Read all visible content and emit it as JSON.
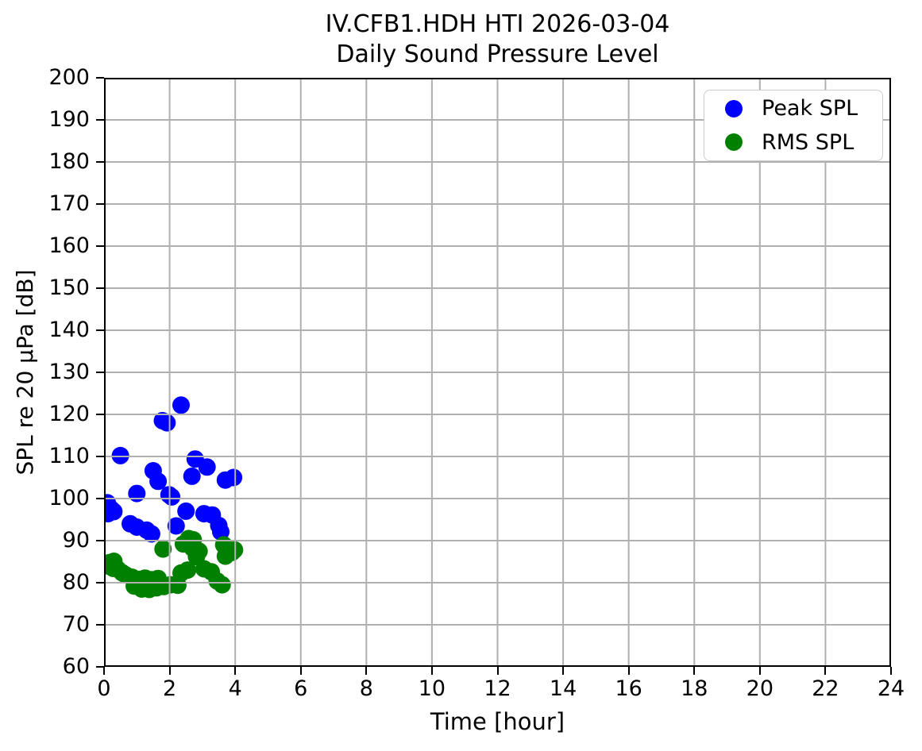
{
  "figure": {
    "background": "#ffffff",
    "text_color": "#000000"
  },
  "chart_data": {
    "type": "scatter",
    "title": "IV.CFB1.HDH HTI 2026-03-04",
    "subtitle": "Daily Sound Pressure Level",
    "xlabel": "Time [hour]",
    "ylabel": "SPL re 20 µPa [dB]",
    "xlim": [
      0,
      24
    ],
    "ylim": [
      60,
      200
    ],
    "xticks": [
      0,
      2,
      4,
      6,
      8,
      10,
      12,
      14,
      16,
      18,
      20,
      22,
      24
    ],
    "yticks": [
      60,
      70,
      80,
      90,
      100,
      110,
      120,
      130,
      140,
      150,
      160,
      170,
      180,
      190,
      200
    ],
    "grid": true,
    "grid_color": "#b0b0b0",
    "grid_above_points": true,
    "spine_color": "#000000",
    "legend_position": "upper right",
    "legend_border_color": "#cccccc",
    "series": [
      {
        "name": "Peak SPL",
        "color": "#0000ff",
        "marker": "o",
        "points": [
          [
            0.1,
            99.0
          ],
          [
            0.22,
            97.5
          ],
          [
            0.12,
            96.4
          ],
          [
            0.3,
            96.9
          ],
          [
            0.5,
            110.2
          ],
          [
            0.8,
            94.0
          ],
          [
            1.0,
            93.2
          ],
          [
            1.0,
            101.2
          ],
          [
            1.3,
            92.5
          ],
          [
            1.45,
            91.6
          ],
          [
            1.5,
            106.6
          ],
          [
            1.65,
            104.1
          ],
          [
            1.78,
            118.5
          ],
          [
            1.92,
            118.0
          ],
          [
            1.98,
            100.9
          ],
          [
            2.06,
            100.4
          ],
          [
            2.2,
            93.5
          ],
          [
            2.35,
            122.2
          ],
          [
            2.5,
            97.0
          ],
          [
            2.68,
            105.3
          ],
          [
            2.78,
            109.4
          ],
          [
            3.05,
            96.4
          ],
          [
            3.14,
            107.5
          ],
          [
            3.3,
            96.1
          ],
          [
            3.5,
            93.6
          ],
          [
            3.56,
            92.1
          ],
          [
            3.7,
            104.4
          ],
          [
            3.95,
            105.0
          ]
        ]
      },
      {
        "name": "RMS SPL",
        "color": "#008000",
        "marker": "o",
        "points": [
          [
            0.05,
            84.0
          ],
          [
            0.18,
            84.8
          ],
          [
            0.3,
            85.1
          ],
          [
            0.28,
            83.4
          ],
          [
            0.42,
            83.2
          ],
          [
            0.55,
            82.4
          ],
          [
            0.65,
            81.9
          ],
          [
            0.85,
            81.3
          ],
          [
            1.05,
            80.8
          ],
          [
            1.25,
            81.1
          ],
          [
            1.45,
            80.7
          ],
          [
            1.65,
            81.0
          ],
          [
            0.92,
            79.2
          ],
          [
            1.15,
            78.5
          ],
          [
            1.38,
            78.4
          ],
          [
            1.6,
            78.8
          ],
          [
            1.82,
            79.1
          ],
          [
            2.03,
            79.5
          ],
          [
            2.25,
            79.4
          ],
          [
            1.8,
            88.0
          ],
          [
            2.35,
            82.3
          ],
          [
            2.55,
            83.0
          ],
          [
            2.42,
            89.2
          ],
          [
            2.58,
            90.5
          ],
          [
            2.72,
            90.2
          ],
          [
            2.7,
            88.2
          ],
          [
            2.9,
            87.5
          ],
          [
            2.82,
            86.2
          ],
          [
            3.05,
            83.3
          ],
          [
            3.27,
            82.6
          ],
          [
            3.45,
            80.4
          ],
          [
            3.6,
            79.5
          ],
          [
            3.65,
            89.0
          ],
          [
            3.77,
            87.4
          ],
          [
            3.7,
            86.3
          ],
          [
            3.9,
            87.2
          ],
          [
            3.98,
            87.8
          ]
        ]
      }
    ]
  }
}
